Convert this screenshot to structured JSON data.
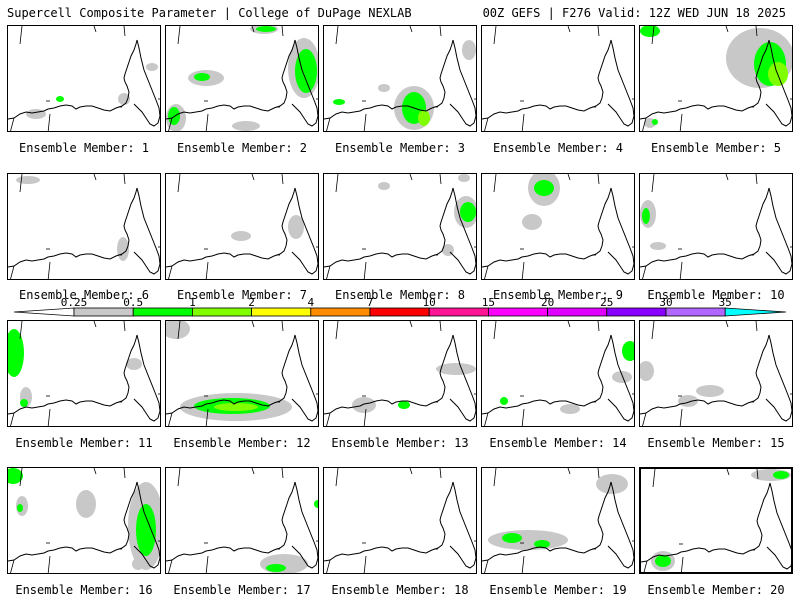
{
  "header": {
    "left": "Supercell Composite Parameter | College of DuPage NEXLAB",
    "right": "00Z GEFS | F276 Valid: 12Z WED JUN 18 2025"
  },
  "colors": {
    "c0_25": "#c8c8c8",
    "c0_5": "#00ff00",
    "c1": "#7fff00",
    "c2": "#ffff00",
    "c4": "#ff8c00",
    "c7": "#ff0000",
    "c10": "#ff1493",
    "c15": "#ff00ff",
    "c20": "#e000ff",
    "c25": "#8a00ff",
    "c30": "#b066ff",
    "c35": "#00ffff"
  },
  "colorbar": {
    "ticks": [
      "0.25",
      "0.5",
      "1",
      "2",
      "4",
      "7",
      "10",
      "15",
      "20",
      "25",
      "30",
      "35"
    ]
  },
  "panels": [
    {
      "label": "Ensemble Member: 1"
    },
    {
      "label": "Ensemble Member: 2"
    },
    {
      "label": "Ensemble Member: 3"
    },
    {
      "label": "Ensemble Member: 4"
    },
    {
      "label": "Ensemble Member: 5"
    },
    {
      "label": "Ensemble Member: 6"
    },
    {
      "label": "Ensemble Member: 7"
    },
    {
      "label": "Ensemble Member: 8"
    },
    {
      "label": "Ensemble Member: 9"
    },
    {
      "label": "Ensemble Member: 10"
    },
    {
      "label": "Ensemble Member: 11"
    },
    {
      "label": "Ensemble Member: 12"
    },
    {
      "label": "Ensemble Member: 13"
    },
    {
      "label": "Ensemble Member: 14"
    },
    {
      "label": "Ensemble Member: 15"
    },
    {
      "label": "Ensemble Member: 16"
    },
    {
      "label": "Ensemble Member: 17"
    },
    {
      "label": "Ensemble Member: 18"
    },
    {
      "label": "Ensemble Member: 19"
    },
    {
      "label": "Ensemble Member: 20"
    }
  ]
}
